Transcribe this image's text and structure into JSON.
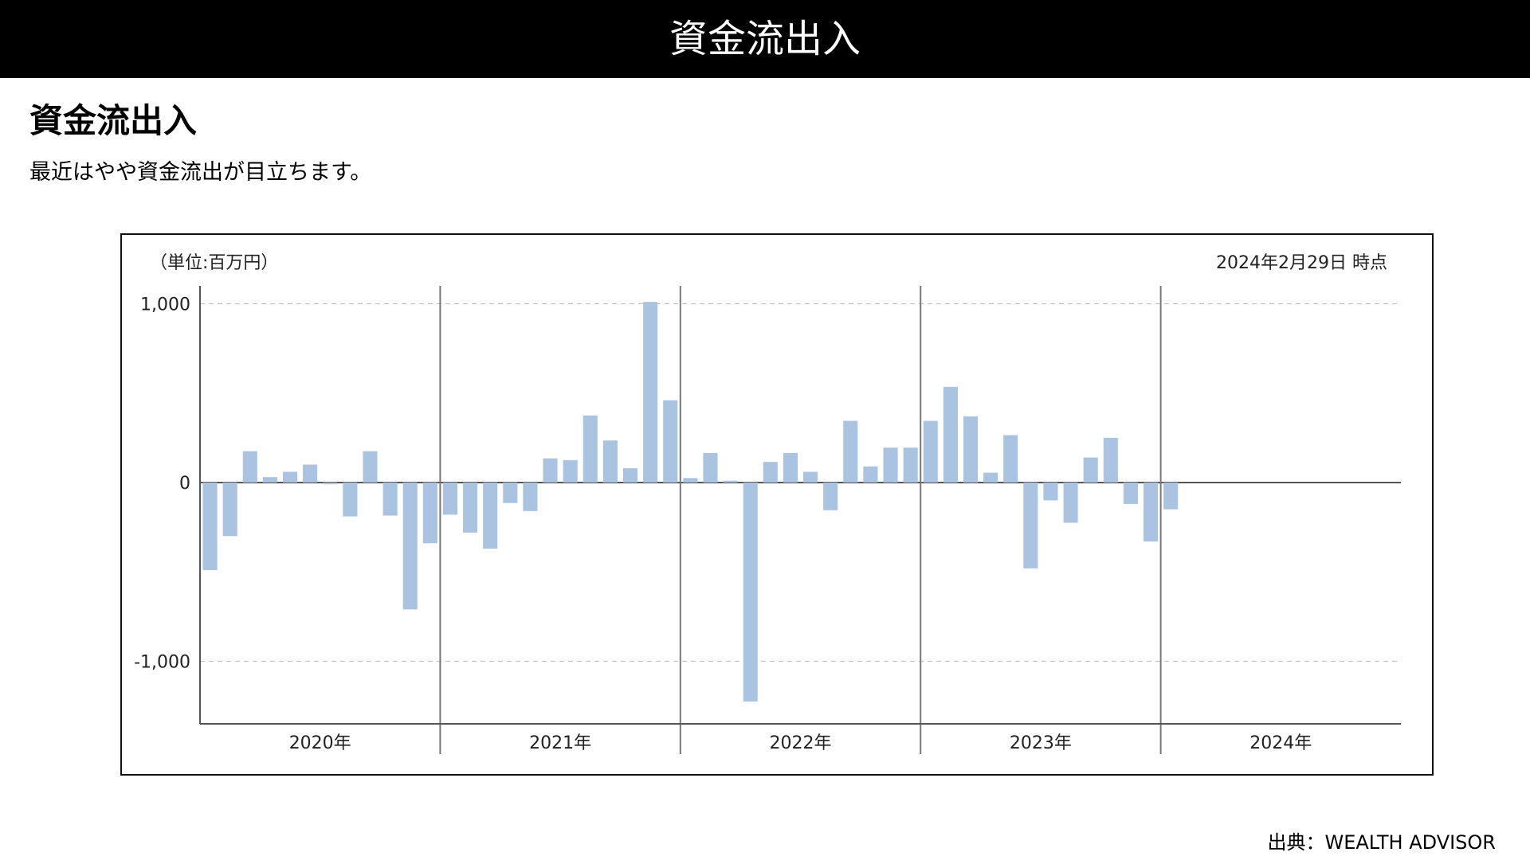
{
  "header": {
    "title": "資金流出入"
  },
  "heading": "資金流出入",
  "subtitle": "最近はやや資金流出が目立ちます。",
  "source": "出典：WEALTH ADVISOR",
  "chart_data": {
    "type": "bar",
    "unit_label": "（単位:百万円）",
    "as_of": "2024年2月29日 時点",
    "color": "#a9c3e0",
    "negative_tick_color": "#e0463a",
    "groups": [
      {
        "label": "2020年",
        "values": [
          -490,
          -300,
          175,
          30,
          60,
          100,
          -10,
          -190,
          175,
          -185,
          -710,
          -340
        ]
      },
      {
        "label": "2021年",
        "values": [
          -180,
          -280,
          -370,
          -115,
          -160,
          135,
          125,
          375,
          235,
          80,
          1010,
          460
        ]
      },
      {
        "label": "2022年",
        "values": [
          25,
          165,
          10,
          -1225,
          115,
          165,
          60,
          -155,
          345,
          90,
          195,
          195
        ]
      },
      {
        "label": "2023年",
        "values": [
          345,
          535,
          370,
          55,
          265,
          -480,
          -100,
          -225,
          140,
          250,
          -120,
          -330
        ]
      },
      {
        "label": "2024年",
        "values": [
          -150,
          null,
          null,
          null,
          null,
          null,
          null,
          null,
          null,
          null,
          null,
          null
        ]
      }
    ],
    "ylim": [
      -1350,
      1100
    ],
    "yticks": [
      {
        "value": -1000,
        "label": "-1,000"
      },
      0,
      {
        "value": 1000,
        "label": "1,000"
      }
    ],
    "grid": true
  }
}
